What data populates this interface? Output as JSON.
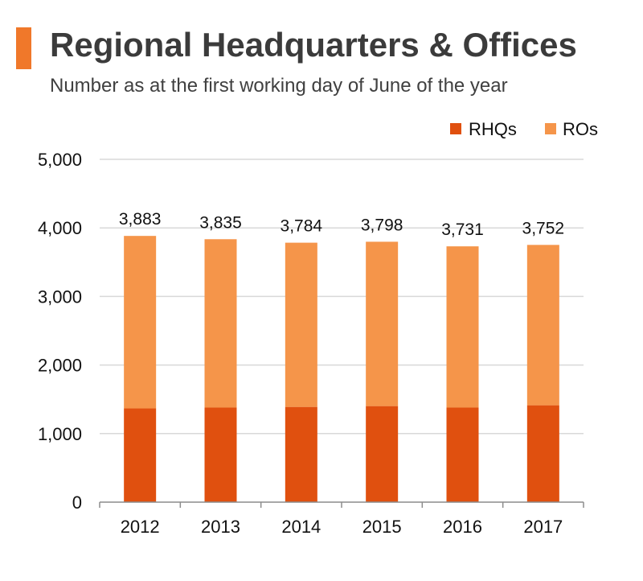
{
  "header": {
    "title": "Regional Headquarters & Offices",
    "subtitle": "Number as at the first working day of June of the year"
  },
  "colors": {
    "accent": "#f0782a",
    "rhqs": "#e0500f",
    "ros": "#f5954a",
    "grid": "#d9d9d9",
    "axis": "#8c8c8c"
  },
  "chart_data": {
    "type": "bar",
    "stacked": true,
    "categories": [
      "2012",
      "2013",
      "2014",
      "2015",
      "2016",
      "2017"
    ],
    "series": [
      {
        "name": "RHQs",
        "values": [
          1367,
          1379,
          1389,
          1401,
          1379,
          1413
        ]
      },
      {
        "name": "ROs",
        "values": [
          2516,
          2456,
          2395,
          2397,
          2352,
          2339
        ]
      }
    ],
    "totals": [
      3883,
      3835,
      3784,
      3798,
      3731,
      3752
    ],
    "total_labels": [
      "3,883",
      "3,835",
      "3,784",
      "3,798",
      "3,731",
      "3,752"
    ],
    "y_ticks": [
      0,
      1000,
      2000,
      3000,
      4000,
      5000
    ],
    "y_tick_labels": [
      "0",
      "1,000",
      "2,000",
      "3,000",
      "4,000",
      "5,000"
    ],
    "ylim": [
      0,
      5000
    ],
    "grid": true,
    "legend_position": "top-right"
  }
}
